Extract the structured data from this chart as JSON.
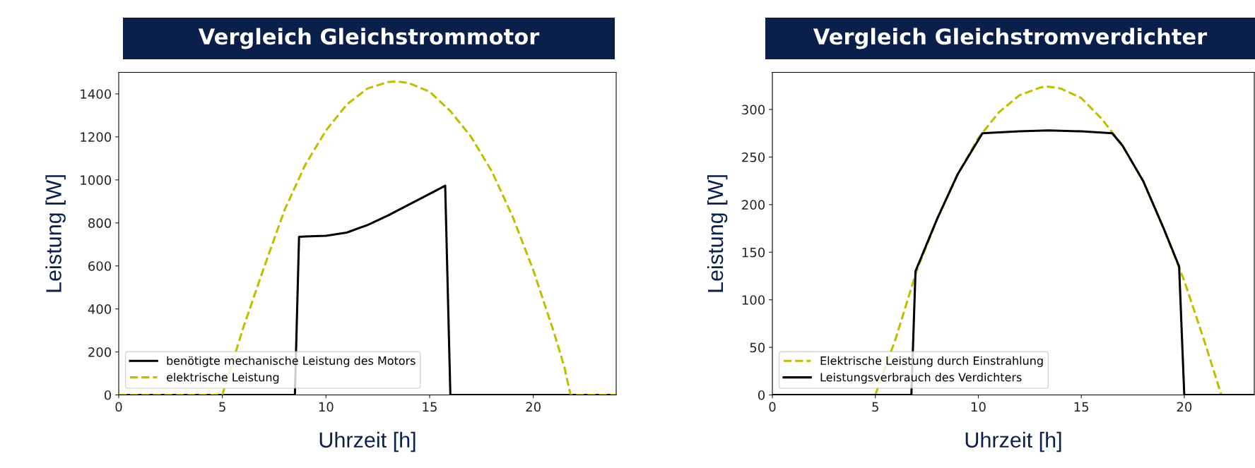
{
  "chart_data": [
    {
      "type": "line",
      "title": "Vergleich Gleichstrommotor",
      "xlabel": "Uhrzeit [h]",
      "ylabel": "Leistung [W]",
      "xlim": [
        0,
        24
      ],
      "xticks": [
        0,
        5,
        10,
        15,
        20
      ],
      "ylim": [
        0,
        1500
      ],
      "yticks": [
        0,
        200,
        400,
        600,
        800,
        1000,
        1200,
        1400
      ],
      "grid": false,
      "legend": "bottom left",
      "series": [
        {
          "name": "benötigte mechanische Leistung des Motors",
          "color": "#000000",
          "line_style": "solid",
          "x": [
            0,
            8.5,
            8.7,
            9,
            10,
            11,
            12,
            13,
            14,
            15,
            15.75,
            16.0,
            24
          ],
          "values": [
            0,
            0,
            735,
            737,
            740,
            755,
            790,
            835,
            885,
            935,
            973,
            0,
            0
          ]
        },
        {
          "name": "elektrische Leistung",
          "color": "#bfbf00",
          "line_style": "dashed",
          "x": [
            0,
            5,
            6,
            7,
            8,
            9,
            10,
            11,
            12,
            13,
            13.4,
            14,
            15,
            16,
            17,
            18,
            19,
            20,
            21,
            21.5,
            21.8,
            24
          ],
          "values": [
            0,
            0,
            310,
            590,
            860,
            1070,
            1230,
            1350,
            1425,
            1455,
            1458,
            1450,
            1410,
            1320,
            1200,
            1040,
            830,
            580,
            290,
            130,
            0,
            0
          ]
        }
      ]
    },
    {
      "type": "line",
      "title": "Vergleich Gleichstromverdichter",
      "xlabel": "Uhrzeit [h]",
      "ylabel": "Leistung [W]",
      "xlim": [
        0,
        23.4
      ],
      "xticks": [
        0,
        5,
        10,
        15,
        20
      ],
      "ylim": [
        0,
        339
      ],
      "yticks": [
        0,
        50,
        100,
        150,
        200,
        250,
        300
      ],
      "grid": false,
      "legend": "bottom left",
      "series": [
        {
          "name": "Elektrische Leistung durch Einstrahlung",
          "color": "#bfbf00",
          "line_style": "dashed",
          "x": [
            0,
            5,
            6,
            7,
            8,
            9,
            10,
            11,
            12,
            13,
            13.4,
            14,
            15,
            16,
            17,
            18,
            19,
            20,
            21,
            21.8,
            23.4
          ],
          "values": [
            0,
            0,
            60,
            130,
            185,
            232,
            270,
            297,
            315,
            323,
            324,
            322,
            312,
            290,
            262,
            225,
            175,
            120,
            55,
            0,
            0
          ]
        },
        {
          "name": "Leistungsverbrauch des Verdichters",
          "color": "#000000",
          "line_style": "solid",
          "x": [
            0,
            6.75,
            6.95,
            8,
            9,
            10.2,
            12,
            13.4,
            15,
            16.5,
            17,
            18,
            19,
            19.75,
            20.0,
            23.4
          ],
          "values": [
            0,
            0,
            130,
            185,
            232,
            275,
            277,
            278,
            277,
            275,
            262,
            225,
            175,
            135,
            0,
            0
          ]
        }
      ]
    }
  ]
}
